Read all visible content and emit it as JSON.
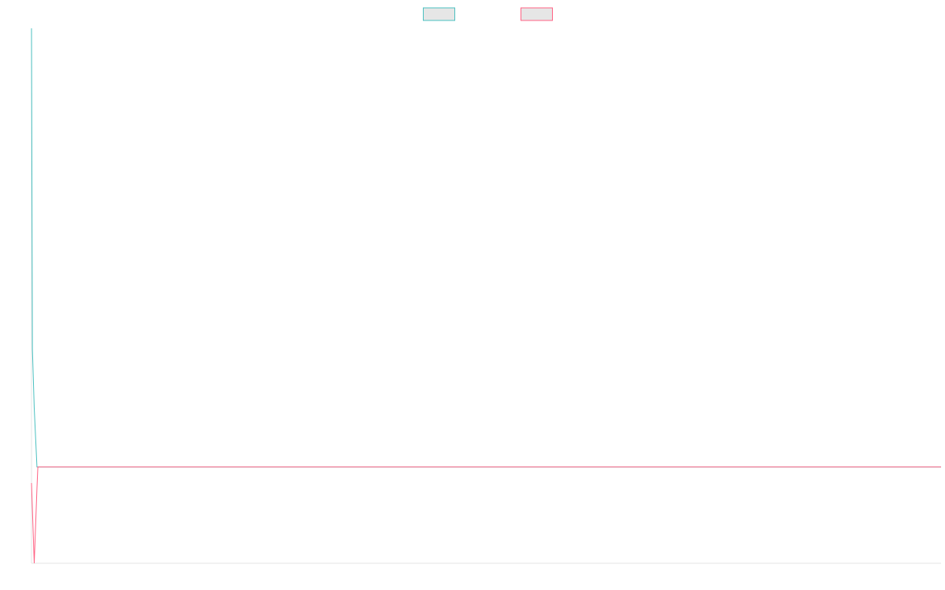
{
  "chart_data": {
    "type": "line",
    "x": [
      0,
      1,
      3,
      6,
      7,
      1000
    ],
    "xlim": [
      0,
      1000
    ],
    "ylim": [
      0,
      100
    ],
    "legend": "top",
    "series": [
      {
        "color": "#4bc0c0",
        "values": [
          100,
          40,
          29,
          18,
          18,
          18
        ]
      },
      {
        "color": "#ff6384",
        "values": [
          15,
          10,
          0,
          14,
          18,
          18
        ]
      }
    ]
  }
}
